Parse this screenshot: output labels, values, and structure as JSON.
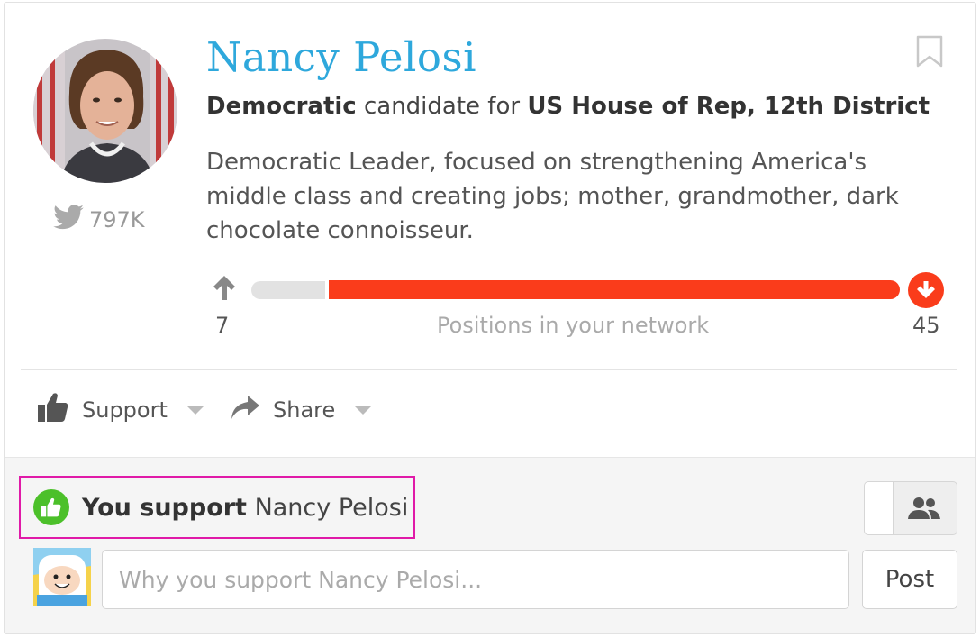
{
  "candidate": {
    "name": "Nancy Pelosi",
    "party": "Democratic",
    "candidate_for_text": "candidate for",
    "office": "US House of Rep, 12th District",
    "bio": "Democratic Leader, focused on strengthening America's middle class and creating jobs; mother, grandmother, dark chocolate connoisseur.",
    "twitter_followers": "797K"
  },
  "positions": {
    "support_count": "7",
    "oppose_count": "45",
    "caption": "Positions in your network",
    "support_fraction": 0.135
  },
  "actions": {
    "support_label": "Support",
    "share_label": "Share"
  },
  "panel": {
    "you_support_bold": "You support",
    "you_support_name": "Nancy Pelosi",
    "reason_placeholder": "Why you support Nancy Pelosi...",
    "post_label": "Post"
  },
  "colors": {
    "name": "#2ea8dc",
    "oppose": "#fa3c1b",
    "support_green": "#4cc02a",
    "highlight_box": "#e01aa8"
  },
  "icons": {
    "bookmark": "bookmark-icon",
    "twitter": "twitter-icon",
    "thumbs_up": "thumbs-up-icon",
    "share": "share-arrow-icon",
    "up_arrow": "arrow-up-icon",
    "down_arrow": "arrow-down-circle-icon",
    "people": "people-icon"
  }
}
